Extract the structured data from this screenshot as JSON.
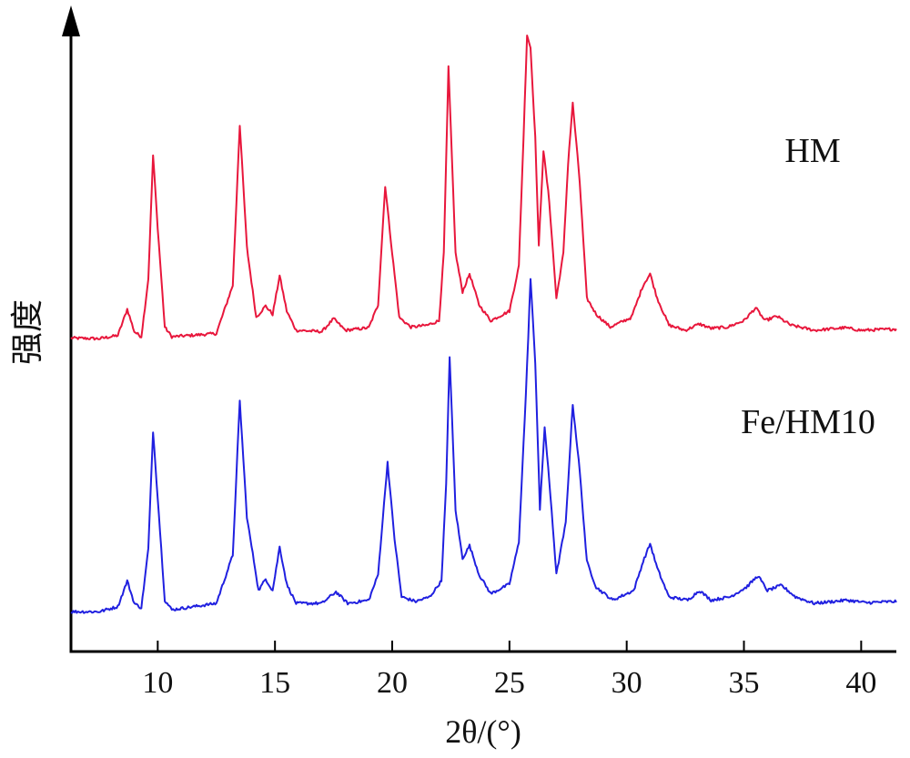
{
  "chart_data": {
    "type": "line",
    "title": "",
    "xlabel": "2θ/(°)",
    "ylabel": "强度",
    "xlim": [
      6.3,
      41.5
    ],
    "ylim": [
      0,
      100
    ],
    "xticks": [
      10,
      15,
      20,
      25,
      30,
      35,
      40
    ],
    "grid": false,
    "legend": "labels beside curves",
    "series": [
      {
        "name": "HM",
        "color": "#e8173c",
        "points": [
          [
            6.3,
            48.8
          ],
          [
            7.5,
            48.7
          ],
          [
            8.3,
            49.2
          ],
          [
            8.7,
            53.3
          ],
          [
            9.0,
            49.8
          ],
          [
            9.3,
            49.0
          ],
          [
            9.6,
            58.0
          ],
          [
            9.8,
            77.2
          ],
          [
            10.0,
            66.0
          ],
          [
            10.3,
            50.5
          ],
          [
            10.6,
            49.0
          ],
          [
            12.5,
            49.5
          ],
          [
            13.2,
            57.0
          ],
          [
            13.5,
            82.0
          ],
          [
            13.8,
            63.0
          ],
          [
            14.2,
            52.0
          ],
          [
            14.6,
            53.8
          ],
          [
            14.9,
            52.5
          ],
          [
            15.2,
            58.5
          ],
          [
            15.5,
            53.0
          ],
          [
            15.9,
            50.0
          ],
          [
            17.0,
            49.8
          ],
          [
            17.5,
            51.8
          ],
          [
            18.0,
            50.0
          ],
          [
            19.0,
            50.4
          ],
          [
            19.4,
            54.0
          ],
          [
            19.7,
            72.5
          ],
          [
            20.0,
            62.0
          ],
          [
            20.3,
            52.0
          ],
          [
            20.8,
            50.5
          ],
          [
            21.5,
            50.8
          ],
          [
            22.0,
            51.5
          ],
          [
            22.2,
            62.0
          ],
          [
            22.4,
            91.0
          ],
          [
            22.7,
            62.0
          ],
          [
            23.0,
            56.0
          ],
          [
            23.3,
            58.8
          ],
          [
            23.7,
            54.0
          ],
          [
            24.2,
            51.5
          ],
          [
            25.0,
            53.0
          ],
          [
            25.4,
            60.0
          ],
          [
            25.6,
            80.0
          ],
          [
            25.75,
            96.0
          ],
          [
            25.9,
            94.0
          ],
          [
            26.1,
            80.0
          ],
          [
            26.25,
            63.0
          ],
          [
            26.45,
            78.0
          ],
          [
            26.7,
            70.0
          ],
          [
            27.0,
            55.0
          ],
          [
            27.3,
            62.0
          ],
          [
            27.5,
            76.0
          ],
          [
            27.7,
            85.3
          ],
          [
            28.0,
            73.0
          ],
          [
            28.3,
            55.0
          ],
          [
            28.7,
            52.5
          ],
          [
            29.3,
            50.5
          ],
          [
            30.2,
            52.0
          ],
          [
            30.7,
            57.0
          ],
          [
            31.0,
            58.8
          ],
          [
            31.3,
            55.0
          ],
          [
            31.8,
            50.8
          ],
          [
            32.5,
            50.0
          ],
          [
            33.1,
            51.0
          ],
          [
            33.6,
            50.3
          ],
          [
            34.3,
            50.5
          ],
          [
            35.0,
            51.5
          ],
          [
            35.5,
            53.5
          ],
          [
            35.9,
            51.5
          ],
          [
            36.4,
            52.2
          ],
          [
            37.0,
            50.8
          ],
          [
            38.0,
            50.0
          ],
          [
            39.3,
            50.4
          ],
          [
            40.0,
            50.0
          ],
          [
            41.5,
            50.2
          ]
        ]
      },
      {
        "name": "Fe/HM10",
        "color": "#2020e0",
        "points": [
          [
            6.3,
            6.2
          ],
          [
            7.5,
            6.2
          ],
          [
            8.3,
            7.0
          ],
          [
            8.7,
            11.0
          ],
          [
            9.0,
            7.5
          ],
          [
            9.3,
            6.8
          ],
          [
            9.6,
            16.0
          ],
          [
            9.8,
            34.3
          ],
          [
            10.0,
            24.0
          ],
          [
            10.3,
            8.0
          ],
          [
            10.6,
            6.5
          ],
          [
            12.5,
            7.5
          ],
          [
            13.2,
            15.0
          ],
          [
            13.5,
            39.0
          ],
          [
            13.8,
            21.0
          ],
          [
            14.3,
            9.5
          ],
          [
            14.6,
            11.3
          ],
          [
            14.9,
            9.5
          ],
          [
            15.2,
            16.3
          ],
          [
            15.5,
            10.5
          ],
          [
            15.9,
            7.5
          ],
          [
            17.0,
            7.5
          ],
          [
            17.6,
            9.3
          ],
          [
            18.1,
            7.5
          ],
          [
            19.0,
            8.0
          ],
          [
            19.4,
            12.0
          ],
          [
            19.8,
            29.5
          ],
          [
            20.1,
            17.5
          ],
          [
            20.4,
            8.5
          ],
          [
            21.0,
            7.8
          ],
          [
            21.6,
            8.5
          ],
          [
            22.1,
            11.0
          ],
          [
            22.3,
            26.0
          ],
          [
            22.45,
            46.0
          ],
          [
            22.7,
            22.0
          ],
          [
            23.0,
            14.5
          ],
          [
            23.3,
            16.5
          ],
          [
            23.7,
            12.0
          ],
          [
            24.2,
            9.0
          ],
          [
            25.0,
            10.5
          ],
          [
            25.4,
            17.0
          ],
          [
            25.7,
            40.0
          ],
          [
            25.9,
            58.0
          ],
          [
            26.1,
            45.0
          ],
          [
            26.3,
            22.0
          ],
          [
            26.5,
            35.0
          ],
          [
            26.8,
            22.0
          ],
          [
            27.0,
            12.0
          ],
          [
            27.4,
            20.0
          ],
          [
            27.7,
            38.5
          ],
          [
            28.0,
            28.0
          ],
          [
            28.3,
            14.0
          ],
          [
            28.7,
            10.0
          ],
          [
            29.4,
            8.0
          ],
          [
            30.3,
            9.5
          ],
          [
            30.7,
            14.0
          ],
          [
            31.0,
            16.8
          ],
          [
            31.3,
            13.0
          ],
          [
            31.8,
            8.5
          ],
          [
            32.6,
            8.0
          ],
          [
            33.1,
            9.5
          ],
          [
            33.6,
            8.0
          ],
          [
            34.4,
            8.5
          ],
          [
            35.1,
            10.0
          ],
          [
            35.6,
            11.8
          ],
          [
            36.0,
            9.5
          ],
          [
            36.6,
            10.3
          ],
          [
            37.2,
            8.5
          ],
          [
            38.0,
            7.5
          ],
          [
            39.4,
            8.0
          ],
          [
            40.2,
            7.6
          ],
          [
            41.5,
            7.8
          ]
        ]
      }
    ]
  }
}
